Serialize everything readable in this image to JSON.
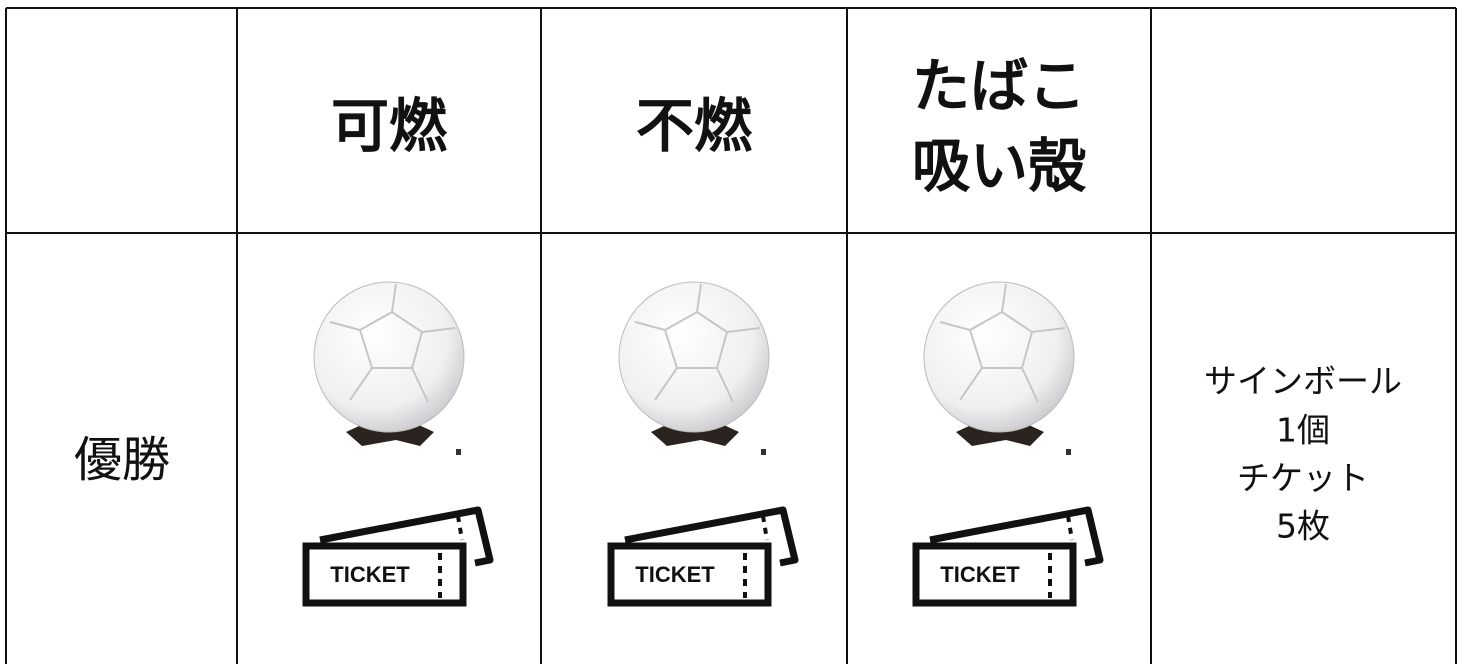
{
  "table": {
    "header": [
      [
        "可燃"
      ],
      [
        "不燃"
      ],
      [
        "たばこ",
        "吸い殻"
      ]
    ],
    "row": {
      "label": "優勝",
      "ticket_text": "TICKET",
      "prize": [
        "サインボール",
        "1個",
        "チケット",
        "5枚"
      ]
    }
  }
}
